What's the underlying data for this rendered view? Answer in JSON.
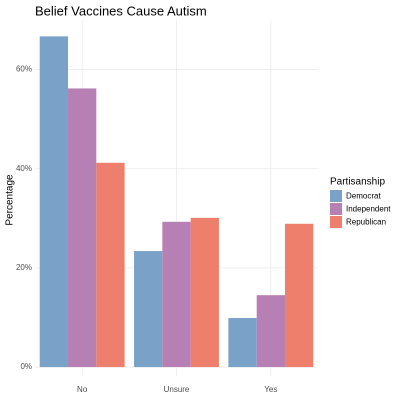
{
  "chart_data": {
    "type": "bar",
    "title": "Belief Vaccines Cause Autism",
    "y_label": "Percentage",
    "legend_title": "Partisanship",
    "categories": [
      "No",
      "Unsure",
      "Yes"
    ],
    "series": [
      {
        "name": "Democrat",
        "color": "#7aa2c8",
        "values": [
          66.7,
          23.4,
          9.9
        ]
      },
      {
        "name": "Independent",
        "color": "#b680b5",
        "values": [
          56.2,
          29.3,
          14.5
        ]
      },
      {
        "name": "Republican",
        "color": "#ee7f6c",
        "values": [
          41.2,
          30.1,
          28.9
        ]
      }
    ],
    "ylim": [
      -1.8,
      70
    ],
    "yticks": [
      {
        "value": 0,
        "label": "0%"
      },
      {
        "value": 20,
        "label": "20%"
      },
      {
        "value": 40,
        "label": "40%"
      },
      {
        "value": 60,
        "label": "60%"
      }
    ],
    "grid": true,
    "legend_position": "right"
  }
}
